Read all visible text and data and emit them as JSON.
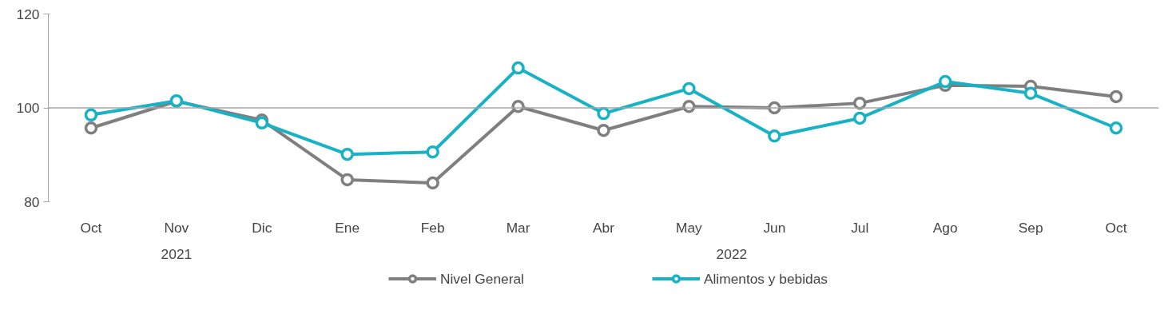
{
  "chart_data": {
    "type": "line",
    "categories": [
      "Oct",
      "Nov",
      "Dic",
      "Ene",
      "Feb",
      "Mar",
      "Abr",
      "May",
      "Jun",
      "Jul",
      "Ago",
      "Sep",
      "Oct"
    ],
    "series": [
      {
        "name": "Nivel General",
        "color": "#7f7f7f",
        "values": [
          95.7,
          101.4,
          97.4,
          84.7,
          84.0,
          100.3,
          95.2,
          100.3,
          100.0,
          101.0,
          104.8,
          104.6,
          102.4
        ]
      },
      {
        "name": "Alimentos y bebidas",
        "color": "#17b2c4",
        "values": [
          98.5,
          101.5,
          96.8,
          90.1,
          90.6,
          108.5,
          98.8,
          104.1,
          94.0,
          97.8,
          105.6,
          103.1,
          95.7
        ]
      }
    ],
    "ylim": [
      80,
      120
    ],
    "yticks": [
      80,
      100,
      120
    ],
    "ref_lines": [
      {
        "axis": "y",
        "value": 100,
        "color": "#a6a6a6"
      }
    ],
    "annotations": [
      "2021",
      "2022"
    ],
    "marker": "circle",
    "line_style": "solid",
    "grid": false,
    "legend": "bottom"
  }
}
